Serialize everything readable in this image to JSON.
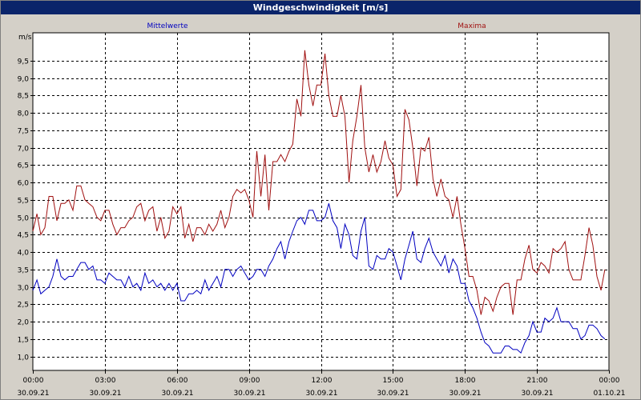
{
  "window": {
    "title": "Windgeschwindigkeit [m/s]"
  },
  "colors": {
    "mean": "#0000c0",
    "max": "#a01010",
    "grid": "#000000",
    "plot_bg": "#ffffff",
    "frame_bg": "#d4d0c8"
  },
  "chart_data": {
    "type": "line",
    "title": "Windgeschwindigkeit [m/s]",
    "ylabel": "m/s",
    "ylim": [
      0.6,
      10.3
    ],
    "yticks": [
      1.0,
      1.5,
      2.0,
      2.5,
      3.0,
      3.5,
      4.0,
      4.5,
      5.0,
      5.5,
      6.0,
      6.5,
      7.0,
      7.5,
      8.0,
      8.5,
      9.0,
      9.5
    ],
    "ytick_labels": [
      "1,0",
      "1,5",
      "2,0",
      "2,5",
      "3,0",
      "3,5",
      "4,0",
      "4,5",
      "5,0",
      "5,5",
      "6,0",
      "6,5",
      "7,0",
      "7,5",
      "8,0",
      "8,5",
      "9,0",
      "9,5"
    ],
    "xlim_hours": [
      0,
      24
    ],
    "xticks_hours": [
      0,
      3,
      6,
      9,
      12,
      15,
      18,
      21,
      24
    ],
    "xtick_time_labels": [
      "00:00",
      "03:00",
      "06:00",
      "09:00",
      "12:00",
      "15:00",
      "18:00",
      "21:00",
      "00:00"
    ],
    "xtick_date_labels": [
      "30.09.21",
      "30.09.21",
      "30.09.21",
      "30.09.21",
      "30.09.21",
      "30.09.21",
      "30.09.21",
      "30.09.21",
      "01.10.21"
    ],
    "grid": true,
    "legend_position": "top",
    "series": [
      {
        "name": "Mittelwerte",
        "x_hours": [
          0.0,
          0.17,
          0.33,
          0.5,
          0.67,
          0.83,
          1.0,
          1.17,
          1.33,
          1.5,
          1.67,
          1.83,
          2.0,
          2.17,
          2.33,
          2.5,
          2.67,
          2.83,
          3.0,
          3.17,
          3.33,
          3.5,
          3.67,
          3.83,
          4.0,
          4.17,
          4.33,
          4.5,
          4.67,
          4.83,
          5.0,
          5.17,
          5.33,
          5.5,
          5.67,
          5.83,
          6.0,
          6.17,
          6.33,
          6.5,
          6.67,
          6.83,
          7.0,
          7.17,
          7.33,
          7.5,
          7.67,
          7.83,
          8.0,
          8.17,
          8.33,
          8.5,
          8.67,
          8.83,
          9.0,
          9.17,
          9.33,
          9.5,
          9.67,
          9.83,
          10.0,
          10.17,
          10.33,
          10.5,
          10.67,
          10.83,
          11.0,
          11.17,
          11.33,
          11.5,
          11.67,
          11.83,
          12.0,
          12.17,
          12.33,
          12.5,
          12.67,
          12.83,
          13.0,
          13.17,
          13.33,
          13.5,
          13.67,
          13.83,
          14.0,
          14.17,
          14.33,
          14.5,
          14.67,
          14.83,
          15.0,
          15.17,
          15.33,
          15.5,
          15.67,
          15.83,
          16.0,
          16.17,
          16.33,
          16.5,
          16.67,
          16.83,
          17.0,
          17.17,
          17.33,
          17.5,
          17.67,
          17.83,
          18.0,
          18.17,
          18.33,
          18.5,
          18.67,
          18.83,
          19.0,
          19.17,
          19.33,
          19.5,
          19.67,
          19.83,
          20.0,
          20.17,
          20.33,
          20.5,
          20.67,
          20.83,
          21.0,
          21.17,
          21.33,
          21.5,
          21.67,
          21.83,
          22.0,
          22.17,
          22.33,
          22.5,
          22.67,
          22.83,
          23.0,
          23.17,
          23.33,
          23.5,
          23.67,
          23.83
        ],
        "values": [
          2.9,
          3.2,
          2.8,
          2.9,
          3.0,
          3.3,
          3.8,
          3.3,
          3.2,
          3.3,
          3.3,
          3.5,
          3.7,
          3.7,
          3.5,
          3.6,
          3.2,
          3.2,
          3.1,
          3.4,
          3.3,
          3.2,
          3.2,
          3.0,
          3.3,
          3.0,
          3.1,
          2.9,
          3.4,
          3.1,
          3.2,
          3.0,
          3.1,
          2.9,
          3.1,
          2.9,
          3.1,
          2.6,
          2.6,
          2.8,
          2.8,
          2.9,
          2.8,
          3.2,
          2.9,
          3.1,
          3.3,
          3.0,
          3.5,
          3.5,
          3.3,
          3.5,
          3.6,
          3.4,
          3.2,
          3.3,
          3.5,
          3.5,
          3.3,
          3.6,
          3.8,
          4.1,
          4.3,
          3.8,
          4.3,
          4.6,
          4.9,
          5.0,
          4.8,
          5.2,
          5.2,
          4.9,
          4.9,
          5.0,
          5.4,
          4.9,
          4.7,
          4.1,
          4.8,
          4.5,
          3.9,
          3.8,
          4.6,
          5.0,
          3.6,
          3.5,
          3.9,
          3.8,
          3.8,
          4.1,
          4.0,
          3.6,
          3.2,
          3.8,
          4.2,
          4.6,
          3.8,
          3.7,
          4.1,
          4.4,
          4.0,
          3.8,
          3.6,
          3.9,
          3.4,
          3.8,
          3.6,
          3.1,
          3.1,
          2.6,
          2.4,
          2.1,
          1.7,
          1.4,
          1.3,
          1.1,
          1.1,
          1.1,
          1.3,
          1.3,
          1.2,
          1.2,
          1.1,
          1.4,
          1.6,
          2.0,
          1.7,
          1.7,
          2.1,
          2.0,
          2.1,
          2.4,
          2.0,
          2.0,
          2.0,
          1.8,
          1.8,
          1.5,
          1.6,
          1.9,
          1.9,
          1.8,
          1.6,
          1.5
        ]
      },
      {
        "name": "Maxima",
        "x_hours": [
          0.0,
          0.17,
          0.33,
          0.5,
          0.67,
          0.83,
          1.0,
          1.17,
          1.33,
          1.5,
          1.67,
          1.83,
          2.0,
          2.17,
          2.33,
          2.5,
          2.67,
          2.83,
          3.0,
          3.17,
          3.33,
          3.5,
          3.67,
          3.83,
          4.0,
          4.17,
          4.33,
          4.5,
          4.67,
          4.83,
          5.0,
          5.17,
          5.33,
          5.5,
          5.67,
          5.83,
          6.0,
          6.17,
          6.33,
          6.5,
          6.67,
          6.83,
          7.0,
          7.17,
          7.33,
          7.5,
          7.67,
          7.83,
          8.0,
          8.17,
          8.33,
          8.5,
          8.67,
          8.83,
          9.0,
          9.17,
          9.33,
          9.5,
          9.67,
          9.83,
          10.0,
          10.17,
          10.33,
          10.5,
          10.67,
          10.83,
          11.0,
          11.17,
          11.33,
          11.5,
          11.67,
          11.83,
          12.0,
          12.17,
          12.33,
          12.5,
          12.67,
          12.83,
          13.0,
          13.17,
          13.33,
          13.5,
          13.67,
          13.83,
          14.0,
          14.17,
          14.33,
          14.5,
          14.67,
          14.83,
          15.0,
          15.17,
          15.33,
          15.5,
          15.67,
          15.83,
          16.0,
          16.17,
          16.33,
          16.5,
          16.67,
          16.83,
          17.0,
          17.17,
          17.33,
          17.5,
          17.67,
          17.83,
          18.0,
          18.17,
          18.33,
          18.5,
          18.67,
          18.83,
          19.0,
          19.17,
          19.33,
          19.5,
          19.67,
          19.83,
          20.0,
          20.17,
          20.33,
          20.5,
          20.67,
          20.83,
          21.0,
          21.17,
          21.33,
          21.5,
          21.67,
          21.83,
          22.0,
          22.17,
          22.33,
          22.5,
          22.67,
          22.83,
          23.0,
          23.17,
          23.33,
          23.5,
          23.67,
          23.83
        ],
        "values": [
          4.6,
          5.1,
          4.5,
          4.7,
          5.6,
          5.6,
          4.9,
          5.4,
          5.4,
          5.5,
          5.2,
          5.9,
          5.9,
          5.5,
          5.4,
          5.3,
          5.0,
          4.9,
          5.2,
          5.2,
          4.8,
          4.5,
          4.7,
          4.7,
          4.9,
          5.0,
          5.3,
          5.4,
          4.9,
          5.2,
          5.3,
          4.6,
          5.0,
          4.4,
          4.6,
          5.3,
          5.1,
          5.3,
          4.4,
          4.8,
          4.3,
          4.7,
          4.7,
          4.5,
          4.8,
          4.6,
          4.8,
          5.2,
          4.7,
          5.0,
          5.6,
          5.8,
          5.7,
          5.8,
          5.5,
          5.0,
          6.9,
          5.6,
          6.8,
          5.2,
          6.6,
          6.6,
          6.8,
          6.6,
          6.9,
          7.1,
          8.4,
          7.9,
          9.8,
          8.8,
          8.2,
          8.8,
          8.8,
          9.7,
          8.5,
          7.9,
          7.9,
          8.5,
          7.9,
          6.0,
          7.2,
          7.9,
          8.8,
          7.0,
          6.3,
          6.8,
          6.3,
          6.6,
          7.2,
          6.7,
          6.5,
          5.6,
          5.8,
          8.1,
          7.8,
          7.0,
          5.9,
          7.0,
          6.9,
          7.3,
          6.1,
          5.6,
          6.1,
          5.6,
          5.5,
          5.0,
          5.6,
          4.8,
          4.1,
          3.3,
          3.3,
          2.9,
          2.2,
          2.7,
          2.6,
          2.3,
          2.7,
          3.0,
          3.1,
          3.1,
          2.2,
          3.2,
          3.2,
          3.8,
          4.2,
          3.5,
          3.4,
          3.7,
          3.6,
          3.4,
          4.1,
          4.0,
          4.1,
          4.3,
          3.5,
          3.2,
          3.2,
          3.2,
          3.9,
          4.7,
          4.2,
          3.3,
          2.9,
          3.5
        ]
      }
    ]
  }
}
